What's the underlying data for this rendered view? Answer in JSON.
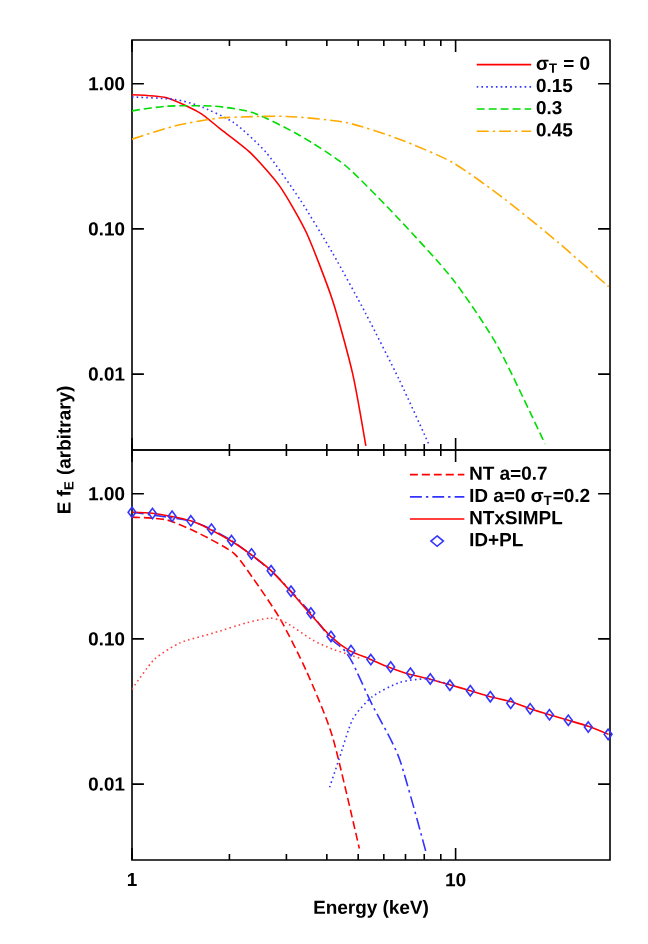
{
  "chart_data": [
    {
      "type": "line",
      "log": "xy",
      "xlim": [
        1,
        30
      ],
      "ylim": [
        0.003,
        2
      ],
      "xticks": [
        1,
        10
      ],
      "yticks": [
        {
          "value": 1,
          "label": "1.00"
        },
        {
          "value": 0.1,
          "label": "0.10"
        },
        {
          "value": 0.01,
          "label": "0.01"
        }
      ],
      "tick_labels": "y",
      "legend": "top right",
      "series": [
        {
          "name": "σ$_{T}$ = 0",
          "color": "#ff0000",
          "line_style": "solid",
          "x": [
            1,
            1.28,
            1.62,
            1.87,
            2.32,
            2.86,
            3.46,
            4.17,
            4.81,
            5.28
          ],
          "values": [
            0.84,
            0.8,
            0.63,
            0.49,
            0.335,
            0.197,
            0.094,
            0.032,
            0.01,
            0.0032
          ]
        },
        {
          "name": "0.15",
          "color": "#3333ff",
          "line_style": "dotted",
          "x": [
            1,
            1.35,
            1.62,
            2.06,
            2.6,
            3.3,
            4.17,
            5.28,
            6.7,
            8.26
          ],
          "values": [
            0.81,
            0.78,
            0.7,
            0.54,
            0.335,
            0.16,
            0.068,
            0.026,
            0.0091,
            0.0033
          ]
        },
        {
          "name": "0.3",
          "color": "#00dd00",
          "line_style": "dashed",
          "x": [
            1,
            1.28,
            1.79,
            2.37,
            3.3,
            4.59,
            6.7,
            9.8,
            13.5,
            18.9
          ],
          "values": [
            0.65,
            0.7,
            0.7,
            0.63,
            0.44,
            0.27,
            0.116,
            0.045,
            0.0155,
            0.0033
          ]
        },
        {
          "name": "0.45",
          "color": "#ffaa00",
          "line_style": "dashdot",
          "x": [
            1,
            1.35,
            1.87,
            3.0,
            4.59,
            6.7,
            9.8,
            14.2,
            20.7,
            29.7
          ],
          "values": [
            0.415,
            0.51,
            0.58,
            0.595,
            0.54,
            0.415,
            0.286,
            0.16,
            0.081,
            0.04
          ]
        }
      ]
    },
    {
      "type": "line",
      "log": "xy",
      "xlim": [
        1,
        30
      ],
      "ylim": [
        0.003,
        2
      ],
      "xticks": [
        1,
        10
      ],
      "yticks": [
        {
          "value": 1,
          "label": "1.00"
        },
        {
          "value": 0.1,
          "label": "0.10"
        },
        {
          "value": 0.01,
          "label": "0.01"
        }
      ],
      "xlabel": "Energy (keV)",
      "ylabel": "E f$_{E}$ (arbitrary)",
      "legend": "top right",
      "series": [
        {
          "name": "NT a=0.7",
          "color": "#ff0000",
          "line_style": "dashed",
          "x": [
            1,
            1.28,
            1.62,
            2.06,
            2.37,
            2.86,
            3.46,
            4.17,
            5.04
          ],
          "values": [
            0.69,
            0.66,
            0.53,
            0.39,
            0.26,
            0.139,
            0.06,
            0.021,
            0.0036
          ]
        },
        {
          "name": "ID a=0 σ$_{T}$=0.2",
          "color": "#3333ff",
          "line_style": "dashdot",
          "x": [
            1,
            1.55,
            2.03,
            2.69,
            3.1,
            3.57,
            4.12,
            4.5,
            4.81,
            5.53,
            6.7,
            8.1
          ],
          "values": [
            0.745,
            0.64,
            0.475,
            0.295,
            0.213,
            0.15,
            0.1,
            0.085,
            0.068,
            0.035,
            0.015,
            0.0034
          ]
        },
        {
          "name": "NTxSIMPL",
          "color": "#ff0000",
          "line_style": "solid",
          "x": [
            1,
            1.17,
            1.55,
            2.0,
            2.3,
            2.67,
            3.07,
            3.54,
            4.11,
            4.7,
            5.4,
            6.2,
            7.2,
            8.3,
            9.7,
            11.1,
            12.8,
            14.8,
            17.0,
            19.5,
            22.3,
            25.7,
            29.7
          ],
          "values": [
            0.745,
            0.73,
            0.64,
            0.48,
            0.39,
            0.3,
            0.216,
            0.15,
            0.104,
            0.083,
            0.073,
            0.064,
            0.057,
            0.053,
            0.048,
            0.044,
            0.04,
            0.037,
            0.033,
            0.03,
            0.0275,
            0.025,
            0.022
          ]
        },
        {
          "name": "ID+PL",
          "type": "scatter",
          "marker": "diamond",
          "color": "#3333ff",
          "x": [
            1,
            1.157,
            1.33,
            1.52,
            1.76,
            2.03,
            2.34,
            2.69,
            3.1,
            3.57,
            4.12,
            4.75,
            5.47,
            6.3,
            7.25,
            8.35,
            9.6,
            11.1,
            12.8,
            14.8,
            17.0,
            19.5,
            22.3,
            25.7,
            29.6
          ],
          "values": [
            0.745,
            0.73,
            0.7,
            0.65,
            0.57,
            0.475,
            0.385,
            0.295,
            0.213,
            0.151,
            0.104,
            0.083,
            0.072,
            0.064,
            0.058,
            0.053,
            0.048,
            0.044,
            0.04,
            0.036,
            0.033,
            0.03,
            0.0275,
            0.0247,
            0.022
          ]
        },
        {
          "color": "#ff4444",
          "line_style": "dotted",
          "x": [
            1,
            1.17,
            1.41,
            1.79,
            2.26,
            2.67,
            3.0,
            3.62,
            4.17,
            5.04
          ],
          "values": [
            0.045,
            0.072,
            0.094,
            0.11,
            0.129,
            0.139,
            0.129,
            0.098,
            0.085,
            0.074
          ]
        },
        {
          "color": "#3333ff",
          "line_style": "dotted",
          "x": [
            4.08,
            4.37,
            4.81,
            5.53,
            6.7,
            8.1,
            9.8
          ],
          "values": [
            0.0095,
            0.015,
            0.028,
            0.04,
            0.05,
            0.053,
            0.048
          ]
        }
      ]
    }
  ]
}
